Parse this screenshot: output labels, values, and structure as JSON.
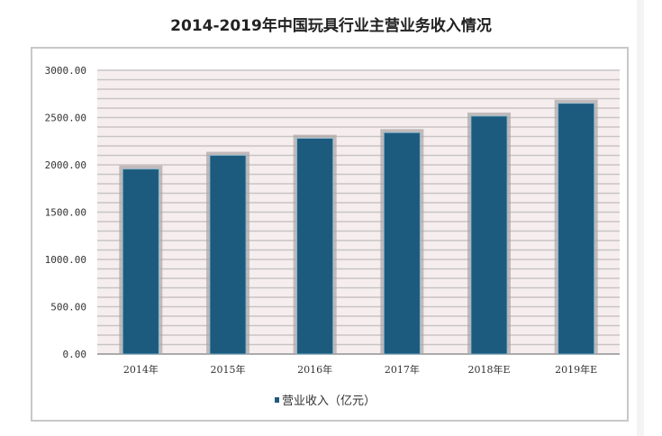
{
  "chart_data": {
    "type": "bar",
    "title": "2014-2019年中国玩具行业主营业务收入情况",
    "categories": [
      "2014年",
      "2015年",
      "2016年",
      "2017年",
      "2018年E",
      "2019年E"
    ],
    "series": [
      {
        "name": "营业收入（亿元）",
        "values": [
          1955,
          2100,
          2280,
          2340,
          2515,
          2650
        ]
      }
    ],
    "ylim": [
      0,
      3000
    ],
    "yticks": [
      "0.00",
      "500.00",
      "1000.00",
      "1500.00",
      "2000.00",
      "2500.00",
      "3000.00"
    ],
    "grid": true,
    "legend": "bottom",
    "colors": {
      "bar": "#1d5b7e",
      "plot_bg": "#f6eeee",
      "grid": "#c8c4c4"
    }
  }
}
